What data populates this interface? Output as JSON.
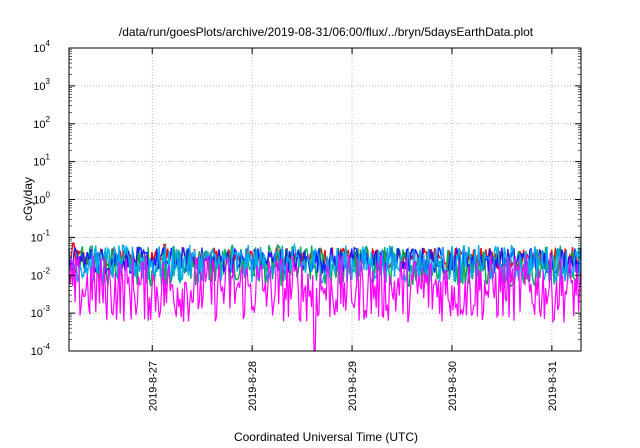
{
  "chart_data": {
    "type": "line",
    "title": "/data/run/goesPlots/archive/2019-08-31/06:00/flux/../bryn/5daysEarthData.plot",
    "xlabel": "Coordinated Universal Time (UTC)",
    "ylabel": "cGy/day",
    "yscale": "log",
    "ylim": [
      0.0001,
      10000
    ],
    "xlim": [
      "2019-08-26T04:00",
      "2019-08-31T07:00"
    ],
    "grid": true,
    "x_ticks": [
      "2019-8-27",
      "2019-8-28",
      "2019-8-29",
      "2019-8-30",
      "2019-8-31"
    ],
    "y_ticks": [
      {
        "value": 0.0001,
        "base": "10",
        "exp": "-4"
      },
      {
        "value": 0.001,
        "base": "10",
        "exp": "-3"
      },
      {
        "value": 0.01,
        "base": "10",
        "exp": "-2"
      },
      {
        "value": 0.1,
        "base": "10",
        "exp": "-1"
      },
      {
        "value": 1,
        "base": "10",
        "exp": "0"
      },
      {
        "value": 10,
        "base": "10",
        "exp": "1"
      },
      {
        "value": 100,
        "base": "10",
        "exp": "2"
      },
      {
        "value": 1000,
        "base": "10",
        "exp": "3"
      },
      {
        "value": 10000,
        "base": "10",
        "exp": "4"
      }
    ],
    "series": [
      {
        "color": "#ff0000",
        "baseline": 0.028,
        "spread": 0.28,
        "spikes": [
          {
            "x": "2019-08-26T05:00",
            "y": 0.07
          },
          {
            "x": "2019-08-27T03:00",
            "y": 0.065
          },
          {
            "x": "2019-08-28T06:00",
            "y": 0.06
          },
          {
            "x": "2019-08-31T05:00",
            "y": 0.055
          }
        ]
      },
      {
        "color": "#00aa55",
        "baseline": 0.018,
        "spread": 0.55,
        "spikes": []
      },
      {
        "color": "#1a1aff",
        "baseline": 0.025,
        "spread": 0.35,
        "spikes": []
      },
      {
        "color": "#00aaee",
        "baseline": 0.02,
        "spread": 0.5,
        "spikes": []
      },
      {
        "color": "#ff00ff",
        "baseline": 0.0045,
        "spread": 0.9,
        "spikes": [
          {
            "x": "2019-08-28T15:00",
            "y": 0.0001
          }
        ]
      }
    ]
  }
}
